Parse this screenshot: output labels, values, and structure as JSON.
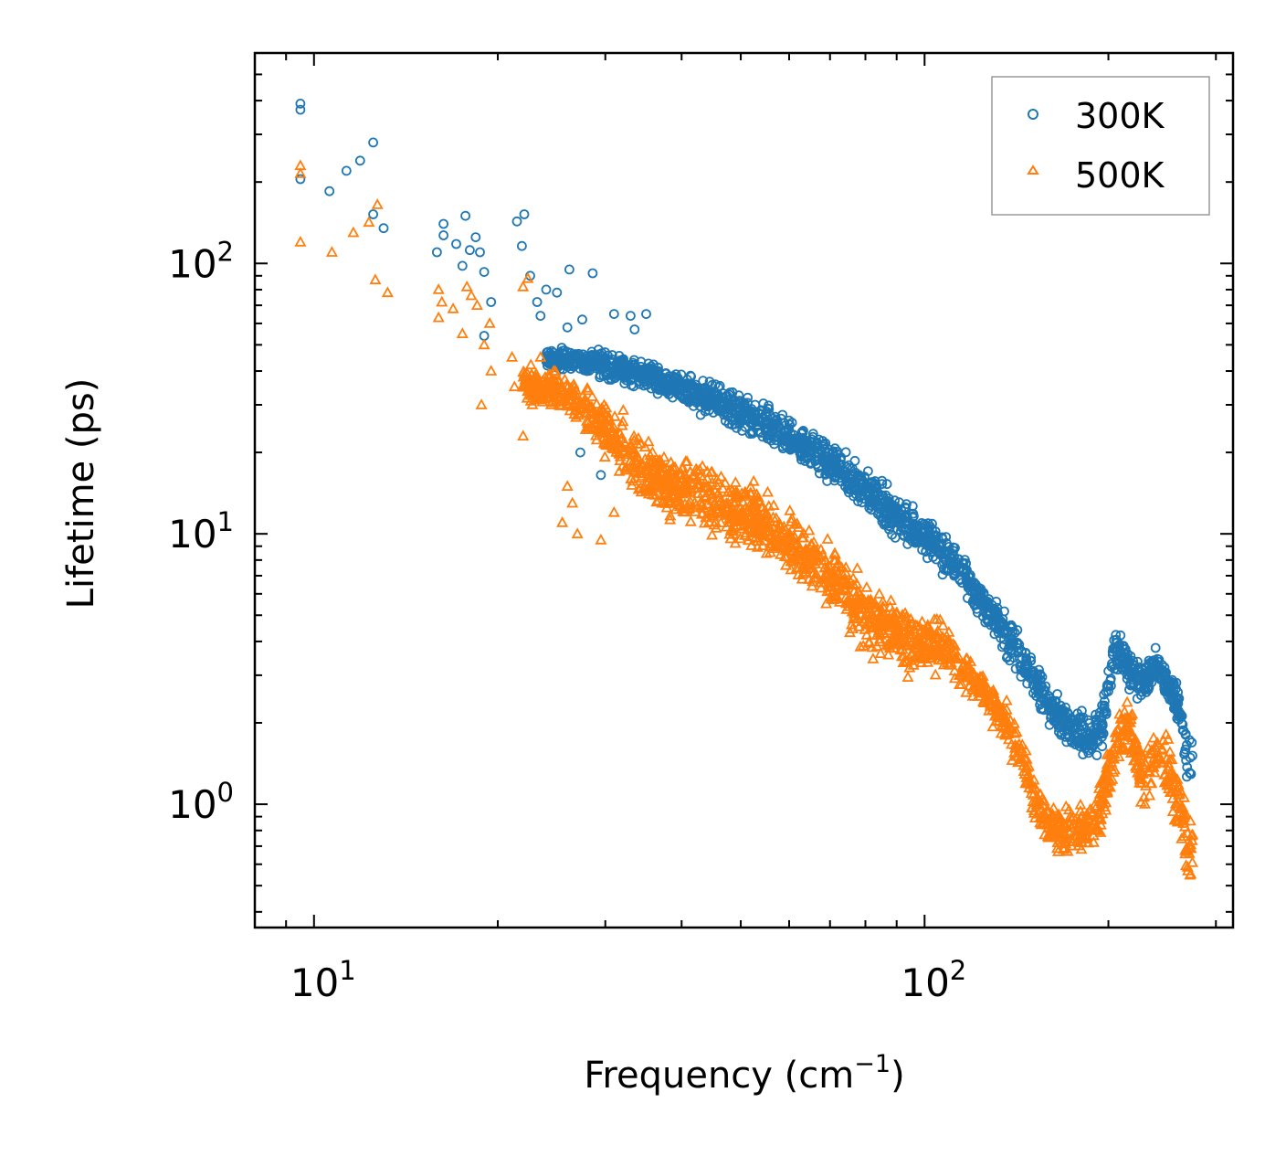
{
  "chart_data": {
    "type": "scatter",
    "title": "",
    "xlabel": "Frequency (cm",
    "xlabel_sup": "−1",
    "xlabel_close": ")",
    "ylabel": "Lifetime (ps)",
    "xscale": "log",
    "yscale": "log",
    "xlim": [
      8,
      320
    ],
    "ylim": [
      0.35,
      600
    ],
    "x_ticks": [
      {
        "base": "10",
        "exp": "1",
        "value": 10
      },
      {
        "base": "10",
        "exp": "2",
        "value": 100
      }
    ],
    "y_ticks": [
      {
        "base": "10",
        "exp": "0",
        "value": 1
      },
      {
        "base": "10",
        "exp": "1",
        "value": 10
      },
      {
        "base": "10",
        "exp": "2",
        "value": 100
      }
    ],
    "legend_position": "top-right",
    "series": [
      {
        "name": "300K",
        "marker": "circle",
        "color": "#1f77b4",
        "points": [
          [
            9.5,
            390
          ],
          [
            9.5,
            370
          ],
          [
            9.5,
            205
          ],
          [
            10.6,
            185
          ],
          [
            11.3,
            220
          ],
          [
            11.9,
            240
          ],
          [
            12.5,
            280
          ],
          [
            12.5,
            152
          ],
          [
            13.0,
            135
          ],
          [
            15.9,
            110
          ],
          [
            16.3,
            140
          ],
          [
            16.3,
            127
          ],
          [
            17.1,
            118
          ],
          [
            17.5,
            98
          ],
          [
            17.7,
            150
          ],
          [
            18.0,
            112
          ],
          [
            18.4,
            125
          ],
          [
            18.7,
            110
          ],
          [
            19.0,
            93
          ],
          [
            19.5,
            72
          ],
          [
            19.0,
            54
          ],
          [
            21.5,
            143
          ],
          [
            22.1,
            152
          ],
          [
            21.9,
            116
          ],
          [
            22.6,
            90
          ],
          [
            23.2,
            72
          ],
          [
            24.0,
            80
          ],
          [
            23.5,
            64
          ],
          [
            25.0,
            78
          ],
          [
            26.2,
            95
          ],
          [
            28.6,
            92
          ],
          [
            27.5,
            62
          ],
          [
            26.0,
            58
          ],
          [
            27.0,
            45
          ],
          [
            28.0,
            40
          ],
          [
            27.3,
            20
          ],
          [
            29.5,
            16.5
          ],
          [
            31.0,
            65
          ],
          [
            33.0,
            64
          ],
          [
            33.5,
            57
          ],
          [
            35.0,
            65
          ]
        ],
        "bands": [
          [
            24,
            40,
            50
          ],
          [
            30,
            36,
            50
          ],
          [
            36,
            32,
            44
          ],
          [
            42,
            27,
            40
          ],
          [
            48,
            24,
            36
          ],
          [
            55,
            20,
            32
          ],
          [
            62,
            17.5,
            27
          ],
          [
            70,
            14.5,
            23
          ],
          [
            78,
            12,
            19
          ],
          [
            86,
            10,
            16
          ],
          [
            95,
            8.5,
            13.5
          ],
          [
            105,
            7.2,
            11
          ],
          [
            115,
            5.8,
            8.8
          ],
          [
            125,
            4.4,
            7
          ],
          [
            135,
            3.4,
            5.5
          ],
          [
            145,
            2.7,
            4.3
          ],
          [
            155,
            2.1,
            3.3
          ],
          [
            165,
            1.7,
            2.7
          ],
          [
            175,
            1.5,
            2.4
          ],
          [
            185,
            1.4,
            2.3
          ],
          [
            195,
            1.5,
            2.6
          ],
          [
            205,
            3.1,
            4.6
          ],
          [
            215,
            2.5,
            4.3
          ],
          [
            228,
            2.2,
            3.6
          ],
          [
            240,
            2.7,
            4.1
          ],
          [
            252,
            2.2,
            3.2
          ],
          [
            262,
            1.7,
            2.8
          ],
          [
            270,
            1.0,
            2.2
          ],
          [
            275,
            1.1,
            1.8
          ]
        ]
      },
      {
        "name": "500K",
        "marker": "triangle",
        "color": "#ff7f0e",
        "points": [
          [
            9.5,
            230
          ],
          [
            9.5,
            215
          ],
          [
            9.5,
            120
          ],
          [
            10.7,
            110
          ],
          [
            11.6,
            130
          ],
          [
            12.3,
            142
          ],
          [
            12.7,
            165
          ],
          [
            12.6,
            87
          ],
          [
            13.2,
            78
          ],
          [
            16.0,
            80
          ],
          [
            16.2,
            72
          ],
          [
            16.0,
            63
          ],
          [
            16.9,
            68
          ],
          [
            17.5,
            55
          ],
          [
            17.8,
            82
          ],
          [
            18.1,
            76
          ],
          [
            18.5,
            70
          ],
          [
            19.0,
            50
          ],
          [
            19.4,
            60
          ],
          [
            18.8,
            30
          ],
          [
            19.5,
            40
          ],
          [
            21.1,
            45
          ],
          [
            22.4,
            88
          ],
          [
            22.0,
            82
          ],
          [
            21.3,
            35
          ],
          [
            22.0,
            23
          ],
          [
            23.5,
            45
          ],
          [
            24.7,
            40
          ],
          [
            26.0,
            15
          ],
          [
            26.5,
            13
          ],
          [
            25.5,
            11
          ],
          [
            27.0,
            10
          ],
          [
            29.5,
            9.5
          ],
          [
            31.0,
            12
          ]
        ],
        "bands": [
          [
            22,
            30,
            44
          ],
          [
            26,
            26,
            40
          ],
          [
            30,
            18,
            33
          ],
          [
            34,
            12,
            26
          ],
          [
            38,
            10.5,
            22
          ],
          [
            42,
            9.5,
            20
          ],
          [
            46,
            8.7,
            19
          ],
          [
            50,
            8.1,
            17.5
          ],
          [
            55,
            7.3,
            15.5
          ],
          [
            60,
            6.5,
            13.5
          ],
          [
            66,
            5.7,
            11.5
          ],
          [
            72,
            4.7,
            9.5
          ],
          [
            78,
            3.6,
            7.8
          ],
          [
            85,
            3.1,
            6.5
          ],
          [
            92,
            2.9,
            5.8
          ],
          [
            100,
            2.8,
            5.3
          ],
          [
            108,
            2.9,
            5.3
          ],
          [
            115,
            2.6,
            4
          ],
          [
            125,
            2.2,
            3.2
          ],
          [
            135,
            1.6,
            2.6
          ],
          [
            145,
            1.1,
            1.9
          ],
          [
            155,
            0.7,
            1.3
          ],
          [
            165,
            0.62,
            1.05
          ],
          [
            175,
            0.6,
            1.05
          ],
          [
            185,
            0.62,
            1.05
          ],
          [
            193,
            0.68,
            1.2
          ],
          [
            205,
            1.2,
            2.4
          ],
          [
            215,
            1.5,
            2.5
          ],
          [
            228,
            0.82,
            1.7
          ],
          [
            240,
            1.2,
            2.2
          ],
          [
            250,
            0.95,
            1.9
          ],
          [
            260,
            0.72,
            1.5
          ],
          [
            270,
            0.42,
            1.1
          ],
          [
            275,
            0.45,
            1.0
          ]
        ]
      }
    ]
  }
}
